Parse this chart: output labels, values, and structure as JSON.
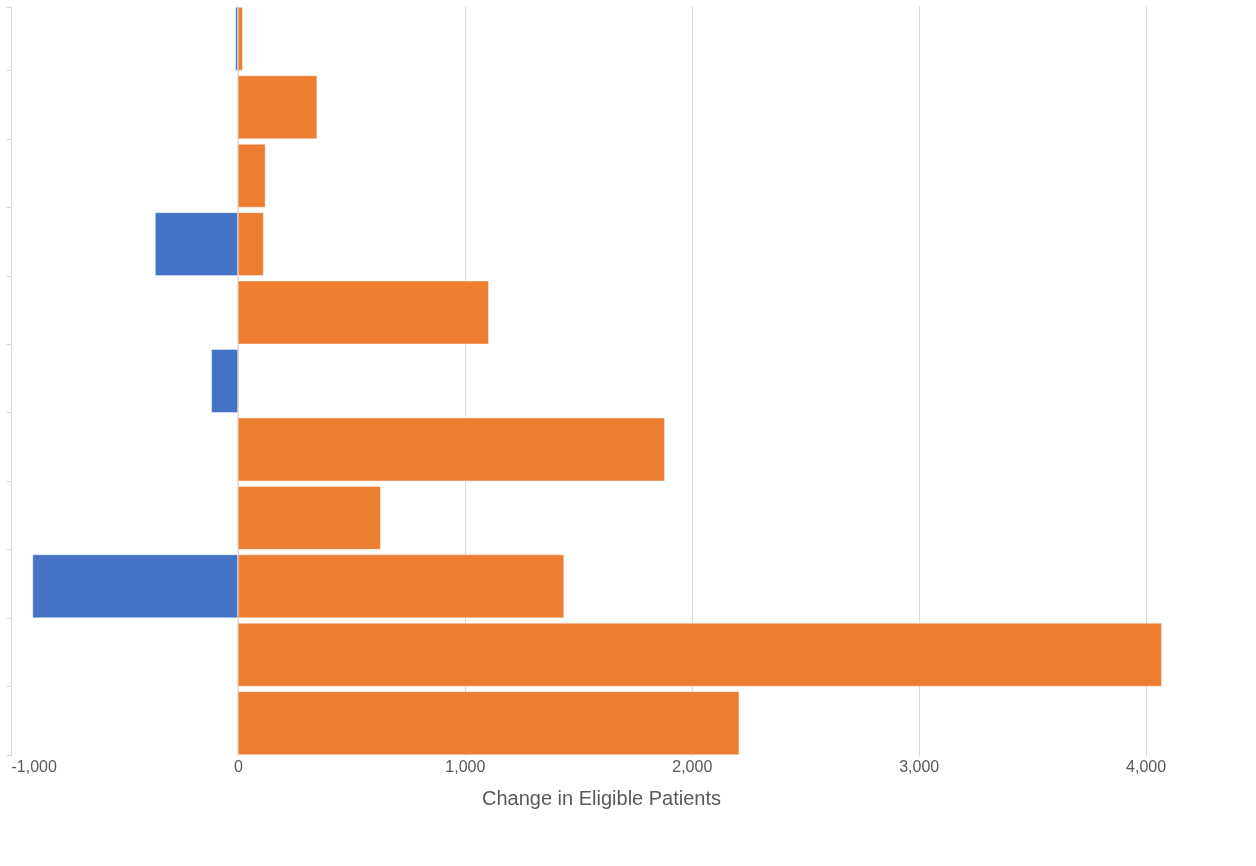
{
  "chart_data": {
    "type": "bar",
    "orientation": "horizontal",
    "xlabel": "Change in Eligible Patients",
    "categories": [
      null,
      null,
      null,
      null,
      null,
      null,
      null,
      null,
      null,
      null,
      null
    ],
    "series": [
      {
        "color": "#4472c4",
        "values": [
          -10,
          null,
          null,
          -364,
          null,
          -116,
          null,
          null,
          -904,
          null,
          null
        ]
      },
      {
        "color": "#ed7d31",
        "values": [
          20,
          348,
          120,
          112,
          1104,
          null,
          1880,
          628,
          1436,
          4070,
          2208
        ]
      }
    ],
    "xlim": [
      -1000,
      4200
    ],
    "xticks": [
      {
        "value": -1000,
        "label": "-1,000"
      },
      0,
      {
        "value": 1000,
        "label": "1,000"
      },
      {
        "value": 2000,
        "label": "2,000"
      },
      {
        "value": 3000,
        "label": "3,000"
      },
      {
        "value": 4000,
        "label": "4,000"
      }
    ],
    "grid": "x",
    "tick_labels": "x"
  }
}
